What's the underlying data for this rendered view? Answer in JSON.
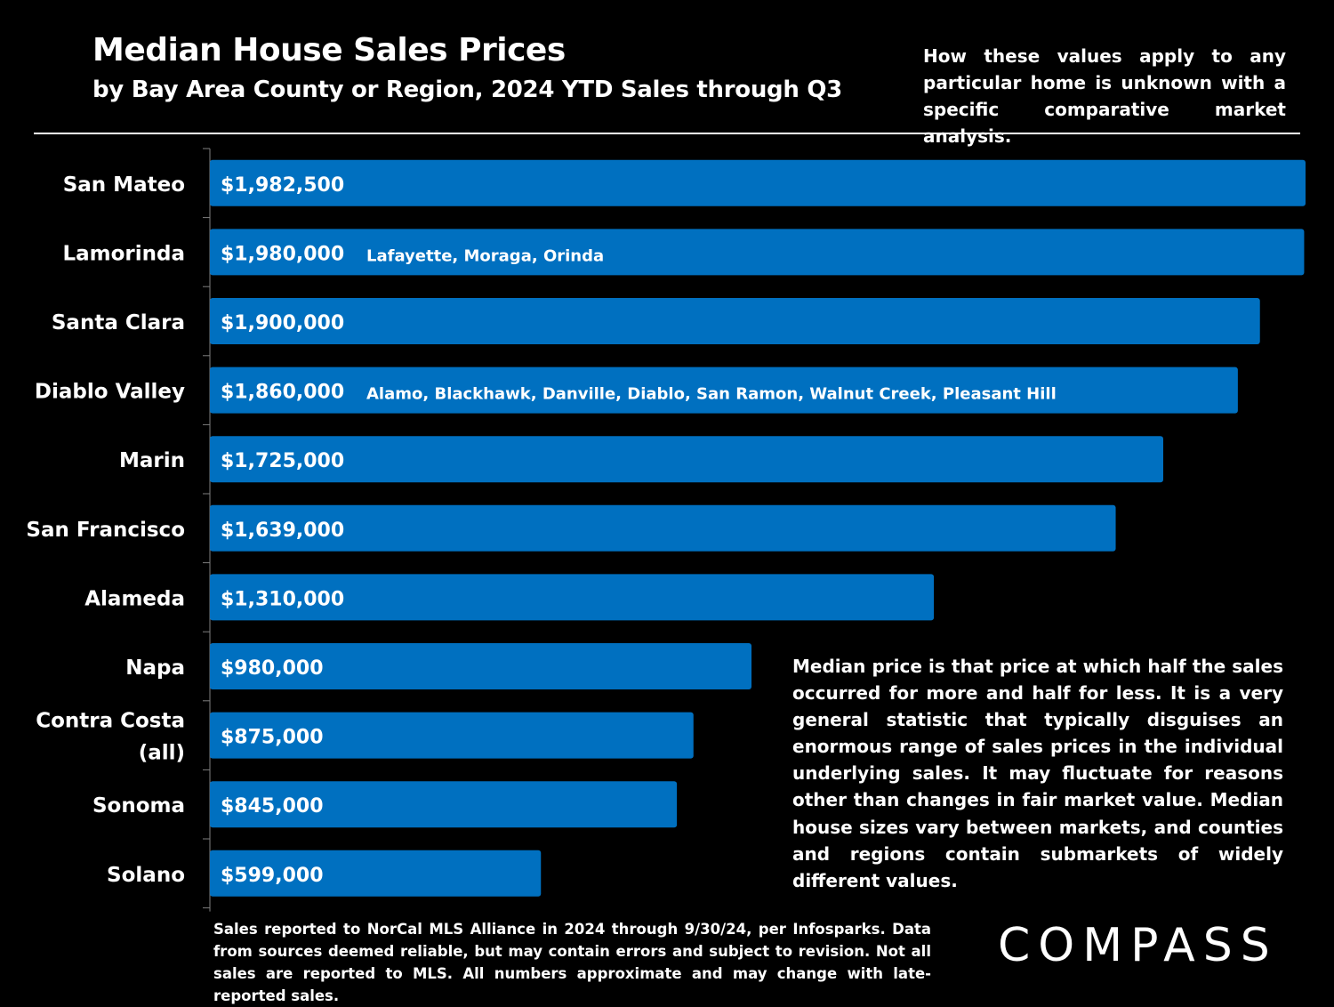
{
  "header": {
    "title": "Median House Sales Prices",
    "subtitle": "by Bay Area County or Region, 2024 YTD Sales through Q3",
    "note": "How these values apply to any particular home is unknown with a specific comparative market analysis."
  },
  "colors": {
    "background": "#000000",
    "bar": "#0070C0",
    "text": "#ffffff"
  },
  "chart_data": {
    "type": "bar",
    "orientation": "horizontal",
    "title": "Median House Sales Prices",
    "subtitle": "by Bay Area County or Region, 2024 YTD Sales through Q3",
    "categories": [
      "San Mateo",
      "Lamorinda",
      "Santa Clara",
      "Diablo Valley",
      "Marin",
      "San Francisco",
      "Alameda",
      "Napa",
      "Contra Costa (all)",
      "Sonoma",
      "Solano"
    ],
    "category_lines": [
      [
        "San Mateo"
      ],
      [
        "Lamorinda"
      ],
      [
        "Santa Clara"
      ],
      [
        "Diablo Valley"
      ],
      [
        "Marin"
      ],
      [
        "San Francisco"
      ],
      [
        "Alameda"
      ],
      [
        "Napa"
      ],
      [
        "Contra Costa",
        "(all)"
      ],
      [
        "Sonoma"
      ],
      [
        "Solano"
      ]
    ],
    "values": [
      1982500,
      1980000,
      1900000,
      1860000,
      1725000,
      1639000,
      1310000,
      980000,
      875000,
      845000,
      599000
    ],
    "data_labels": [
      "$1,982,500",
      "$1,980,000",
      "$1,900,000",
      "$1,860,000",
      "$1,725,000",
      "$1,639,000",
      "$1,310,000",
      "$980,000",
      "$875,000",
      "$845,000",
      "$599,000"
    ],
    "annotations": [
      "",
      "Lafayette, Moraga, Orinda",
      "",
      "Alamo, Blackhawk, Danville, Diablo, San Ramon, Walnut Creek, Pleasant Hill",
      "",
      "",
      "",
      "",
      "",
      "",
      ""
    ],
    "xlim": [
      0,
      1982500
    ],
    "grid": false,
    "legend": "none"
  },
  "side_note": "Median price is that price at which half the sales occurred for more and half for less. It is a very general statistic that typically disguises an enormous range of sales prices in the individual underlying sales. It may fluctuate for reasons other than changes in fair market value. Median house sizes vary between markets, and counties and regions contain submarkets of widely different values.",
  "footnote": "Sales reported to NorCal MLS Alliance in 2024 through 9/30/24, per Infosparks. Data from sources deemed reliable, but may contain errors and subject to revision. Not all sales are reported to MLS. All numbers approximate and may change with late-reported sales.",
  "logo": {
    "text": "COMPASS"
  }
}
